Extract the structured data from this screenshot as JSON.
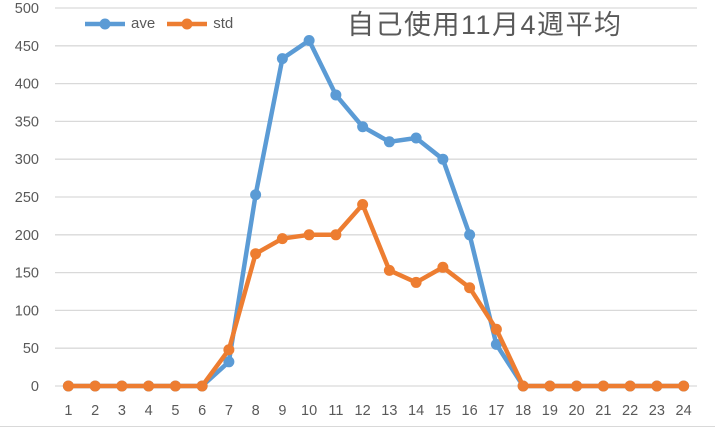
{
  "chart_data": {
    "type": "line",
    "title": "自己使用11月4週平均",
    "xlabel": "",
    "ylabel": "",
    "categories": [
      1,
      2,
      3,
      4,
      5,
      6,
      7,
      8,
      9,
      10,
      11,
      12,
      13,
      14,
      15,
      16,
      17,
      18,
      19,
      20,
      21,
      22,
      23,
      24
    ],
    "yticks": [
      0,
      50,
      100,
      150,
      200,
      250,
      300,
      350,
      400,
      450,
      500
    ],
    "ylim": [
      0,
      500
    ],
    "grid": true,
    "legend_position": "top-left",
    "marker": "circle",
    "series": [
      {
        "name": "ave",
        "color": "#5B9BD5",
        "values": [
          0,
          0,
          0,
          0,
          0,
          0,
          32,
          253,
          433,
          457,
          385,
          343,
          323,
          328,
          300,
          200,
          55,
          0,
          0,
          0,
          0,
          0,
          0,
          0
        ]
      },
      {
        "name": "std",
        "color": "#ED7D31",
        "values": [
          0,
          0,
          0,
          0,
          0,
          0,
          48,
          175,
          195,
          200,
          200,
          240,
          153,
          137,
          157,
          130,
          75,
          0,
          0,
          0,
          0,
          0,
          0,
          0
        ]
      }
    ]
  },
  "colors": {
    "background": "#FFFFFF",
    "grid": "#D9D9D9",
    "axis_labels": "#595959",
    "title": "#595959",
    "border": "#D9D9D9"
  }
}
